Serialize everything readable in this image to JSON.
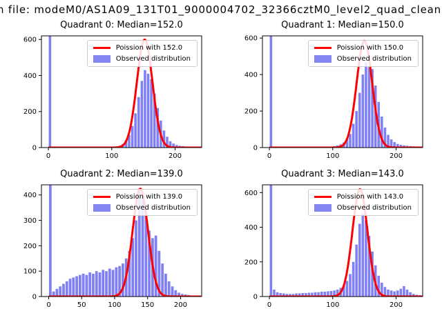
{
  "figure": {
    "suptitle": "n file: modeM0/AS1A09_131T01_9000004702_32366cztM0_level2_quad_clean",
    "background": "#ffffff"
  },
  "colors": {
    "hist_fill": "#3c3cf0",
    "hist_fill_opacity": 0.65,
    "hist_legend": "#8585f2",
    "curve": "#ff0000",
    "axis": "#000000",
    "text": "#000000"
  },
  "chart_data": [
    {
      "type": "bar",
      "subtype": "histogram-with-fit",
      "title": "Quadrant 0: Median=152.0",
      "median": 152.0,
      "legend": [
        "Poission with 152.0",
        "Observed distribution"
      ],
      "legend_position": "upper right",
      "bin_start": 0,
      "bin_width": 5,
      "counts": [
        650,
        3,
        2,
        2,
        2,
        2,
        2,
        2,
        2,
        2,
        2,
        2,
        2,
        2,
        2,
        2,
        2,
        2,
        2,
        3,
        4,
        6,
        10,
        20,
        40,
        70,
        120,
        190,
        280,
        370,
        430,
        410,
        380,
        300,
        220,
        150,
        95,
        60,
        35,
        22,
        14,
        10,
        8,
        6,
        5,
        4,
        3,
        3
      ],
      "curve": {
        "label": "Poission with 152.0",
        "mean": 152.0,
        "sigma": 12.33,
        "amplitude": 600
      },
      "xlim": [
        -11,
        242
      ],
      "ylim": [
        0,
        620
      ],
      "xticks": [
        0,
        100,
        200
      ],
      "yticks": [
        0,
        200,
        400,
        600
      ]
    },
    {
      "type": "bar",
      "subtype": "histogram-with-fit",
      "title": "Quadrant 1: Median=150.0",
      "median": 150.0,
      "legend": [
        "Poission with 150.0",
        "Observed distribution"
      ],
      "legend_position": "upper right",
      "bin_start": 0,
      "bin_width": 5,
      "counts": [
        650,
        4,
        3,
        3,
        3,
        3,
        3,
        3,
        3,
        3,
        3,
        3,
        3,
        3,
        3,
        3,
        3,
        3,
        4,
        5,
        8,
        12,
        18,
        28,
        45,
        75,
        130,
        200,
        300,
        400,
        470,
        440,
        430,
        340,
        250,
        170,
        110,
        70,
        45,
        30,
        20,
        15,
        12,
        10,
        8,
        7,
        6,
        5
      ],
      "curve": {
        "label": "Poission with 150.0",
        "mean": 150.0,
        "sigma": 12.25,
        "amplitude": 585
      },
      "xlim": [
        -11,
        242
      ],
      "ylim": [
        0,
        612
      ],
      "xticks": [
        0,
        100,
        200
      ],
      "yticks": [
        0,
        200,
        400,
        600
      ]
    },
    {
      "type": "bar",
      "subtype": "histogram-with-fit",
      "title": "Quadrant 2: Median=139.0",
      "median": 139.0,
      "legend": [
        "Poission with 139.0",
        "Observed distribution"
      ],
      "legend_position": "upper right",
      "bin_start": 0,
      "bin_width": 5,
      "counts": [
        500,
        20,
        30,
        40,
        50,
        60,
        70,
        75,
        80,
        85,
        90,
        85,
        95,
        90,
        100,
        95,
        105,
        100,
        110,
        105,
        115,
        120,
        130,
        150,
        180,
        230,
        300,
        420,
        400,
        330,
        260,
        230,
        240,
        180,
        130,
        90,
        60,
        40,
        25,
        15,
        10,
        8,
        6,
        4,
        3,
        3,
        2,
        2
      ],
      "curve": {
        "label": "Poission with 139.0",
        "mean": 139.0,
        "sigma": 11.79,
        "amplitude": 425
      },
      "xlim": [
        -11,
        232
      ],
      "ylim": [
        0,
        440
      ],
      "xticks": [
        0,
        50,
        100,
        150,
        200
      ],
      "yticks": [
        0,
        100,
        200,
        300,
        400
      ]
    },
    {
      "type": "bar",
      "subtype": "histogram-with-fit",
      "title": "Quadrant 3: Median=143.0",
      "median": 143.0,
      "legend": [
        "Poission with 143.0",
        "Observed distribution"
      ],
      "legend_position": "upper right",
      "bin_start": 0,
      "bin_width": 5,
      "counts": [
        700,
        40,
        25,
        20,
        18,
        15,
        15,
        15,
        18,
        18,
        20,
        20,
        22,
        22,
        25,
        25,
        28,
        28,
        30,
        32,
        35,
        40,
        50,
        65,
        90,
        130,
        200,
        300,
        420,
        480,
        440,
        350,
        260,
        180,
        120,
        80,
        55,
        40,
        35,
        30,
        35,
        45,
        60,
        40,
        25,
        15,
        10,
        8
      ],
      "curve": {
        "label": "Poission with 143.0",
        "mean": 143.0,
        "sigma": 11.96,
        "amplitude": 620
      },
      "xlim": [
        -11,
        242
      ],
      "ylim": [
        0,
        645
      ],
      "xticks": [
        0,
        100,
        200
      ],
      "yticks": [
        0,
        200,
        400,
        600
      ]
    }
  ]
}
